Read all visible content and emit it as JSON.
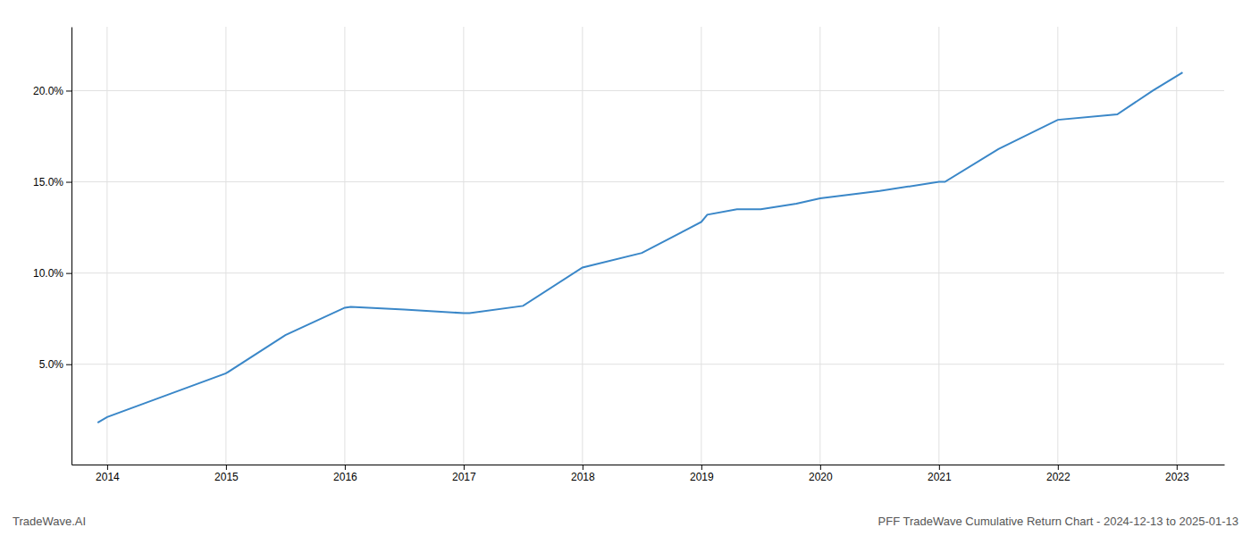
{
  "chart_data": {
    "type": "line",
    "title": "PFF TradeWave Cumulative Return Chart - 2024-12-13 to 2025-01-13",
    "annotations": [
      {
        "text": "TradeWave.AI"
      }
    ],
    "x": [
      2013.92,
      2014.0,
      2014.5,
      2015.0,
      2015.5,
      2016.0,
      2016.05,
      2016.5,
      2017.0,
      2017.05,
      2017.5,
      2018.0,
      2018.5,
      2019.0,
      2019.05,
      2019.3,
      2019.5,
      2019.8,
      2020.0,
      2020.5,
      2021.0,
      2021.05,
      2021.5,
      2022.0,
      2022.5,
      2022.8,
      2023.05
    ],
    "values": [
      1.8,
      2.1,
      3.3,
      4.5,
      6.6,
      8.1,
      8.15,
      8.0,
      7.8,
      7.8,
      8.2,
      10.3,
      11.1,
      12.8,
      13.2,
      13.5,
      13.5,
      13.8,
      14.1,
      14.5,
      15.0,
      15.0,
      16.8,
      18.4,
      18.7,
      20.0,
      21.0
    ],
    "color": "#3a87c8",
    "xlim": [
      2013.7,
      2023.4
    ],
    "ylim": [
      -0.5,
      23.5
    ],
    "xticks": [
      2014,
      2015,
      2016,
      2017,
      2018,
      2019,
      2020,
      2021,
      2022,
      2023
    ],
    "yticks": [
      {
        "value": 5.0,
        "label": "5.0%"
      },
      {
        "value": 10.0,
        "label": "10.0%"
      },
      {
        "value": 15.0,
        "label": "15.0%"
      },
      {
        "value": 20.0,
        "label": "20.0%"
      }
    ],
    "grid": true
  }
}
